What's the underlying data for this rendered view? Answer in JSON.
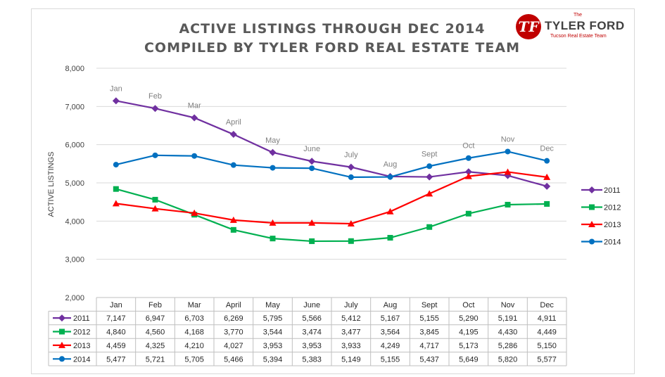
{
  "chart_data": {
    "type": "line",
    "title": "ACTIVE LISTINGS THROUGH DEC 2014",
    "subtitle": "COMPILED BY TYLER FORD REAL ESTATE TEAM",
    "xlabel": "",
    "ylabel": "ACTIVE LISTINGS",
    "ylim": [
      2000,
      8000
    ],
    "yticks": [
      "2,000",
      "3,000",
      "4,000",
      "5,000",
      "6,000",
      "7,000",
      "8,000"
    ],
    "categories": [
      "Jan",
      "Feb",
      "Mar",
      "April",
      "May",
      "June",
      "July",
      "Aug",
      "Sept",
      "Oct",
      "Nov",
      "Dec"
    ],
    "grid": true,
    "legend_position": "right",
    "series": [
      {
        "name": "2011",
        "color": "#7030a0",
        "marker": "diamond",
        "values": [
          7147,
          6947,
          6703,
          6269,
          5795,
          5566,
          5412,
          5167,
          5155,
          5290,
          5191,
          4911
        ]
      },
      {
        "name": "2012",
        "color": "#00b050",
        "marker": "square",
        "values": [
          4840,
          4560,
          4168,
          3770,
          3544,
          3474,
          3477,
          3564,
          3845,
          4195,
          4430,
          4449
        ]
      },
      {
        "name": "2013",
        "color": "#ff0000",
        "marker": "triangle",
        "values": [
          4459,
          4325,
          4210,
          4027,
          3953,
          3953,
          3933,
          4249,
          4717,
          5173,
          5286,
          5150
        ]
      },
      {
        "name": "2014",
        "color": "#0070c0",
        "marker": "circle",
        "values": [
          5477,
          5721,
          5705,
          5466,
          5394,
          5383,
          5149,
          5155,
          5437,
          5649,
          5820,
          5577
        ]
      }
    ],
    "table": {
      "rows": [
        {
          "series": "2011",
          "cells": [
            "7,147",
            "6,947",
            "6,703",
            "6,269",
            "5,795",
            "5,566",
            "5,412",
            "5,167",
            "5,155",
            "5,290",
            "5,191",
            "4,911"
          ]
        },
        {
          "series": "2012",
          "cells": [
            "4,840",
            "4,560",
            "4,168",
            "3,770",
            "3,544",
            "3,474",
            "3,477",
            "3,564",
            "3,845",
            "4,195",
            "4,430",
            "4,449"
          ]
        },
        {
          "series": "2013",
          "cells": [
            "4,459",
            "4,325",
            "4,210",
            "4,027",
            "3,953",
            "3,953",
            "3,933",
            "4,249",
            "4,717",
            "5,173",
            "5,286",
            "5,150"
          ]
        },
        {
          "series": "2014",
          "cells": [
            "5,477",
            "5,721",
            "5,705",
            "5,466",
            "5,394",
            "5,383",
            "5,149",
            "5,155",
            "5,437",
            "5,649",
            "5,820",
            "5,577"
          ]
        }
      ]
    }
  },
  "logo": {
    "top_text": "The",
    "name": "TYLER FORD",
    "subtitle": "Tucson Real Estate Team",
    "badge_text": "TF",
    "badge_color": "#c00000"
  }
}
